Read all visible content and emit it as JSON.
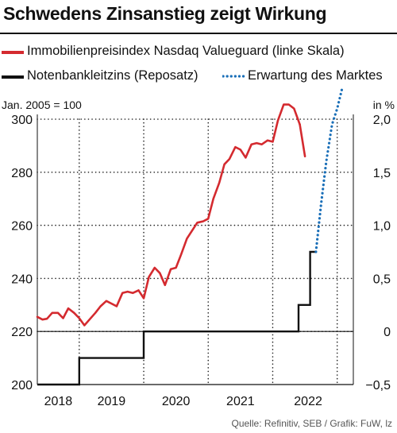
{
  "chart_data": {
    "type": "line",
    "title": "Schwedens Zinsanstieg zeigt Wirkung",
    "left_axis": {
      "unit_label": "Jan. 2005 = 100",
      "ticks": [
        200,
        220,
        240,
        260,
        280,
        300
      ],
      "tick_labels": [
        "200",
        "220",
        "240",
        "260",
        "280",
        "300"
      ],
      "ylim": [
        200,
        300
      ]
    },
    "right_axis": {
      "unit_label": "in %",
      "ticks": [
        -0.5,
        0,
        0.5,
        1.0,
        1.5,
        2.0
      ],
      "tick_labels": [
        "−0,5",
        "0",
        "0,5",
        "1,0",
        "1,5",
        "2,0"
      ],
      "ylim": [
        -0.5,
        2.0
      ]
    },
    "x_axis": {
      "labels": [
        "2018",
        "2019",
        "2020",
        "2021",
        "2022"
      ],
      "xlim": [
        2017.85,
        2022.75
      ],
      "year_boundaries": [
        2018.5,
        2019.5,
        2020.5,
        2021.5,
        2022.5
      ]
    },
    "grid": true,
    "series": [
      {
        "name": "Immobilienpreisindex Nasdaq Valueguard (linke Skala)",
        "axis": "left",
        "color": "#d42a2f",
        "style": "solid",
        "x": [
          2017.85,
          2017.93,
          2018.0,
          2018.08,
          2018.17,
          2018.25,
          2018.33,
          2018.42,
          2018.5,
          2018.58,
          2018.67,
          2018.75,
          2018.83,
          2018.92,
          2019.0,
          2019.08,
          2019.17,
          2019.25,
          2019.33,
          2019.42,
          2019.5,
          2019.58,
          2019.67,
          2019.75,
          2019.83,
          2019.92,
          2020.0,
          2020.08,
          2020.17,
          2020.25,
          2020.33,
          2020.42,
          2020.5,
          2020.58,
          2020.67,
          2020.75,
          2020.83,
          2020.92,
          2021.0,
          2021.08,
          2021.17,
          2021.25,
          2021.33,
          2021.42,
          2021.5,
          2021.58,
          2021.67,
          2021.75,
          2021.83,
          2021.92
        ],
        "y": [
          225.5,
          224.5,
          224.8,
          227.0,
          227.0,
          225.0,
          228.7,
          227.0,
          225.0,
          222.3,
          224.8,
          227.0,
          229.5,
          231.5,
          230.5,
          229.5,
          234.5,
          235.0,
          234.5,
          235.5,
          232.5,
          240.5,
          244.0,
          242.0,
          237.5,
          243.5,
          244.0,
          249.0,
          255.0,
          258.0,
          261.0,
          261.5,
          262.5,
          270.0,
          276.0,
          283.0,
          285.0,
          289.5,
          288.5,
          285.5,
          290.5,
          291.0,
          290.5,
          292.0,
          291.5,
          299.5,
          305.5,
          305.5,
          304.0,
          298.0
        ]
      },
      {
        "name": "Immobilienpreisindex Nasdaq Valueguard (linke Skala) – Ende",
        "axis": "left",
        "color": "#d42a2f",
        "style": "solid",
        "x": [
          2021.92,
          2022.0
        ],
        "y": [
          298.0,
          286.0
        ]
      },
      {
        "name": "Notenbankleitzins (Reposatz)",
        "axis": "right",
        "color": "#111111",
        "style": "step",
        "x": [
          2017.85,
          2018.5,
          2018.5,
          2019.5,
          2019.5,
          2021.9,
          2021.9,
          2022.08,
          2022.08,
          2022.17
        ],
        "y": [
          -0.5,
          -0.5,
          -0.25,
          -0.25,
          0.0,
          0.0,
          0.25,
          0.25,
          0.75,
          0.75
        ]
      },
      {
        "name": "Erwartung des Marktes",
        "axis": "right",
        "color": "#1a6fb8",
        "style": "dotted",
        "x": [
          2022.17,
          2022.25,
          2022.33,
          2022.42,
          2022.5,
          2022.58
        ],
        "y": [
          0.75,
          1.2,
          1.6,
          1.95,
          2.1,
          2.3
        ]
      }
    ]
  },
  "legend": [
    {
      "label": "Immobilienpreisindex Nasdaq Valueguard (linke Skala)",
      "color": "#d42a2f",
      "style": "solid"
    },
    {
      "label": "Notenbankleitzins (Reposatz)",
      "color": "#111111",
      "style": "solid"
    },
    {
      "label": "Erwartung des Marktes",
      "color": "#1a6fb8",
      "style": "dotted"
    }
  ],
  "source": "Quelle: Refinitiv, SEB / Grafik: FuW, lz"
}
